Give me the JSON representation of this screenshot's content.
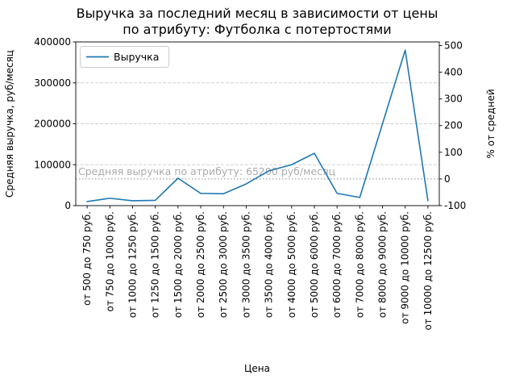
{
  "chart_data": {
    "type": "line",
    "title": "Выручка за последний месяц в зависимости от цены по атрибуту: Футболка с потертостями",
    "title_line1": "Выручка за последний месяц в зависимости от цены",
    "title_line2": "по атрибуту: Футболка с потертостями",
    "xlabel": "Цена",
    "ylabel": "Средняя выручка, руб/месяц",
    "ylabel_right": "% от средней",
    "categories": [
      "от 500 до 750 руб.",
      "от 750 до 1000 руб.",
      "от 1000 до 1250 руб.",
      "от 1250 до 1500 руб.",
      "от 1500 до 2000 руб.",
      "от 2000 до 2500 руб.",
      "от 2500 до 3000 руб.",
      "от 3000 до 3500 руб.",
      "от 3500 до 4000 руб.",
      "от 4000 до 5000 руб.",
      "от 5000 до 6000 руб.",
      "от 6000 до 7000 руб.",
      "от 7000 до 8000 руб.",
      "от 8000 до 9000 руб.",
      "от 9000 до 10000 руб.",
      "от 10000 до 12500 руб."
    ],
    "series": [
      {
        "name": "Выручка",
        "color": "#1f77b4",
        "values": [
          10000,
          18000,
          12000,
          13000,
          67000,
          30000,
          29000,
          53000,
          85000,
          100000,
          128000,
          30000,
          20000,
          200000,
          380000,
          12000
        ]
      }
    ],
    "ylim_left": [
      0,
      400000
    ],
    "yticks_left": [
      0,
      100000,
      200000,
      300000,
      400000
    ],
    "yticks_right": [
      -100,
      0,
      100,
      200,
      300,
      400,
      500
    ],
    "average_line": {
      "value": 65200,
      "label": "Средняя выручка по атрибуту: 65200 руб/месяц",
      "color": "#a0a0a0"
    },
    "legend": {
      "position": "top-left",
      "entries": [
        "Выручка"
      ]
    },
    "grid": true
  }
}
